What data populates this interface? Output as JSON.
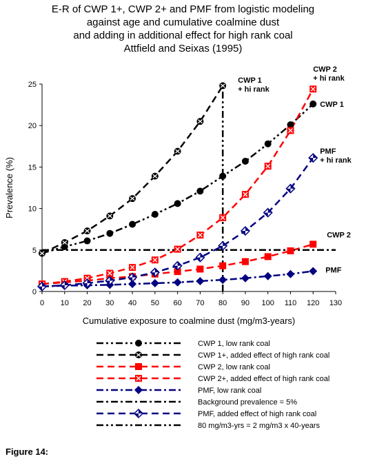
{
  "title_lines": [
    "E-R of CWP 1+, CWP 2+ and PMF from logistic modeling",
    "against age and cumulative coalmine dust",
    "and adding in additional effect for high rank coal",
    "Attfield and Seixas (1995)"
  ],
  "figure_caption": "Figure 14:",
  "chart_data": {
    "type": "line",
    "title": "E-R of CWP 1+, CWP 2+ and PMF from logistic modeling against age and cumulative coalmine dust and adding in additional effect for high rank coal Attfield and Seixas (1995)",
    "xlabel": "Cumulative exposure to coalmine dust (mg/m3-years)",
    "ylabel": "Prevalence (%)",
    "xlim": [
      0,
      130
    ],
    "ylim": [
      0,
      25
    ],
    "x_ticks": [
      0,
      10,
      20,
      30,
      40,
      50,
      60,
      70,
      80,
      90,
      100,
      110,
      120,
      130
    ],
    "y_ticks": [
      0,
      5,
      10,
      15,
      20,
      25
    ],
    "grid": false,
    "legend_position": "bottom",
    "series": [
      {
        "name": "CWP 1, low rank coal",
        "color": "#000000",
        "dash": "dashdotdot",
        "marker": "circle",
        "x": [
          0,
          10,
          20,
          30,
          40,
          50,
          60,
          70,
          80,
          90,
          100,
          110,
          120
        ],
        "values": [
          4.6,
          5.4,
          6.1,
          7.0,
          8.1,
          9.3,
          10.6,
          12.1,
          13.9,
          15.7,
          17.8,
          20.1,
          22.6
        ]
      },
      {
        "name": "CWP 1+,  added effect of high rank coal",
        "color": "#000000",
        "dash": "dash",
        "marker": "circle-x",
        "x": [
          0,
          10,
          20,
          30,
          40,
          50,
          60,
          70,
          80
        ],
        "values": [
          4.6,
          5.9,
          7.3,
          9.1,
          11.2,
          13.9,
          16.9,
          20.5,
          24.8
        ]
      },
      {
        "name": "CWP 2, low rank coal",
        "color": "#ff0000",
        "dash": "dash",
        "marker": "square",
        "x": [
          0,
          10,
          20,
          30,
          40,
          50,
          60,
          70,
          80,
          90,
          100,
          110,
          120
        ],
        "values": [
          0.9,
          1.1,
          1.3,
          1.6,
          1.8,
          2.1,
          2.4,
          2.7,
          3.1,
          3.6,
          4.2,
          4.9,
          5.7
        ]
      },
      {
        "name": "CWP 2+, added effect of high rank coal",
        "color": "#ff0000",
        "dash": "dash",
        "marker": "square-x",
        "x": [
          0,
          10,
          20,
          30,
          40,
          50,
          60,
          70,
          80,
          90,
          100,
          110,
          120
        ],
        "values": [
          0.9,
          1.2,
          1.6,
          2.2,
          2.9,
          3.8,
          5.1,
          6.8,
          8.9,
          11.7,
          15.1,
          19.4,
          24.4
        ]
      },
      {
        "name": "PMF, low rank coal",
        "color": "#000080",
        "dash": "dashdot",
        "marker": "diamond",
        "x": [
          0,
          10,
          20,
          30,
          40,
          50,
          60,
          70,
          80,
          90,
          100,
          110,
          120
        ],
        "values": [
          0.6,
          0.7,
          0.75,
          0.8,
          0.9,
          1.0,
          1.1,
          1.25,
          1.4,
          1.6,
          1.85,
          2.1,
          2.45
        ]
      },
      {
        "name": "Background prevalence = 5%",
        "color": "#000000",
        "dash": "dashdot",
        "marker": "none",
        "x": [
          0,
          130
        ],
        "values": [
          5,
          5
        ]
      },
      {
        "name": "PMF, added effect of high rank coal",
        "color": "#000080",
        "dash": "dash",
        "marker": "diamond-x",
        "x": [
          0,
          10,
          20,
          30,
          40,
          50,
          60,
          70,
          80,
          90,
          100,
          110,
          120
        ],
        "values": [
          0.6,
          0.75,
          1.0,
          1.3,
          1.7,
          2.3,
          3.1,
          4.1,
          5.5,
          7.3,
          9.5,
          12.4,
          16.1
        ]
      },
      {
        "name": "80 mg/m3-yrs  = 2 mg/m3 x 40-years",
        "color": "#000000",
        "dash": "dashdotdot",
        "marker": "none",
        "x": [
          80,
          80
        ],
        "values": [
          0,
          25
        ]
      }
    ],
    "annotations": [
      {
        "lines": [
          "CWP 1",
          "+ hi rank"
        ],
        "x": 80,
        "y": 25
      },
      {
        "lines": [
          "CWP 2",
          "+ hi rank"
        ],
        "x": 120,
        "y": 25
      },
      {
        "lines": [
          "CWP 1"
        ],
        "x": 120,
        "y": 22.6
      },
      {
        "lines": [
          "PMF",
          "+ hi rank"
        ],
        "x": 120,
        "y": 16.1
      },
      {
        "lines": [
          "CWP 2"
        ],
        "x": 120,
        "y": 5.7
      },
      {
        "lines": [
          "PMF"
        ],
        "x": 120,
        "y": 2.45
      }
    ]
  }
}
